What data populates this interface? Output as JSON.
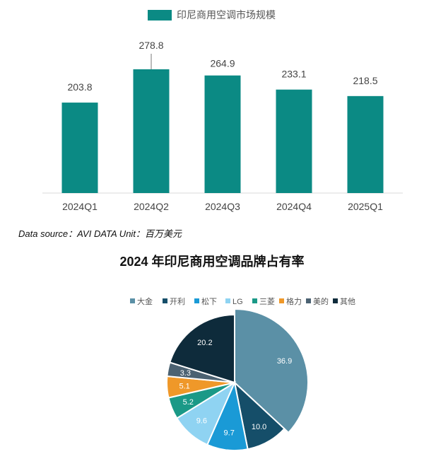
{
  "chart_data": [
    {
      "type": "bar",
      "legend": [
        "印尼商用空调市场规模"
      ],
      "categories": [
        "2024Q1",
        "2024Q2",
        "2024Q3",
        "2024Q4",
        "2025Q1"
      ],
      "series": [
        {
          "name": "印尼商用空调市场规模",
          "values": [
            203.8,
            278.8,
            264.9,
            233.1,
            218.5
          ]
        }
      ],
      "data_labels": [
        "203.8",
        "278.8",
        "264.9",
        "233.1",
        "218.5"
      ],
      "color": "#0b8a84",
      "legend_position": "top",
      "grid": false
    },
    {
      "type": "pie",
      "title": "2024 年印尼商用空调品牌占有率",
      "labels": [
        "大金",
        "开利",
        "松下",
        "LG",
        "三菱",
        "格力",
        "美的",
        "其他"
      ],
      "values": [
        36.9,
        10.0,
        9.7,
        9.6,
        5.2,
        5.1,
        3.3,
        20.2
      ],
      "data_labels": [
        "36.9",
        "10.0",
        "9.7",
        "9.6",
        "5.2",
        "5.1",
        "3.3",
        "20.2"
      ],
      "colors": [
        "#5b90a6",
        "#154e69",
        "#1a9ad6",
        "#8fd3f2",
        "#1a9987",
        "#ef9829",
        "#4b6272",
        "#0e2b3b"
      ],
      "legend_position": "top"
    }
  ],
  "source_note": "Data source：AVI DATA Unit：百万美元"
}
